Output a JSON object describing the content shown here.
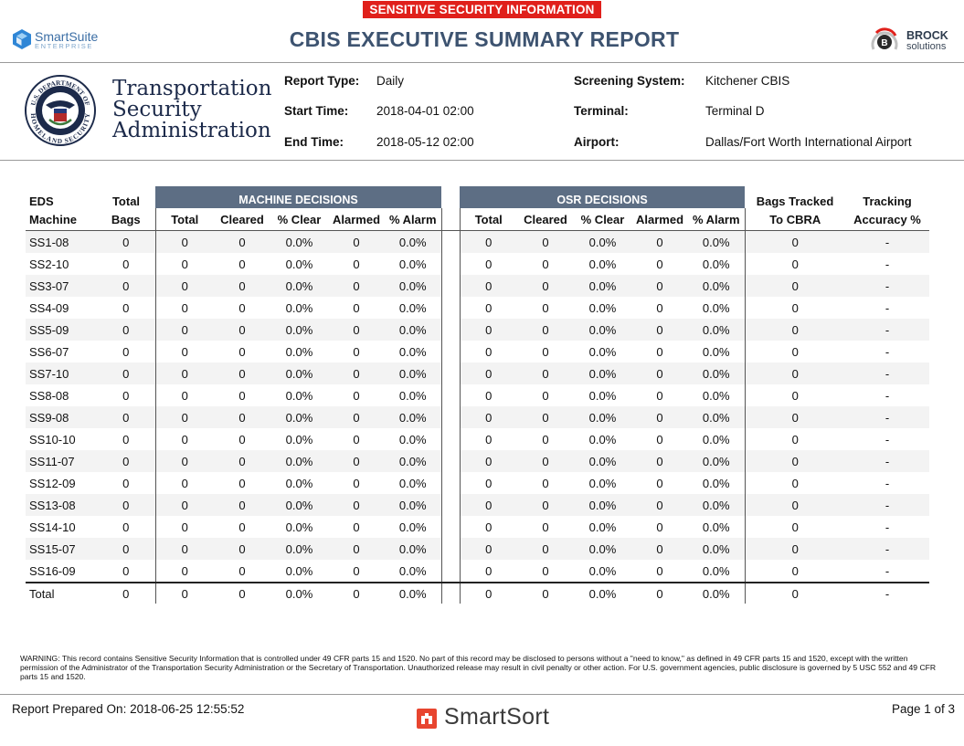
{
  "banner": {
    "ssi": "SENSITIVE SECURITY INFORMATION"
  },
  "header": {
    "title": "CBIS EXECUTIVE SUMMARY REPORT",
    "smartsuite": {
      "name": "SmartSuite",
      "sub": "ENTERPRISE"
    },
    "brock": {
      "line1": "BROCK",
      "line2": "solutions"
    }
  },
  "agency": {
    "seal_text": [
      "U.S. DEPARTMENT OF",
      "HOMELAND SECURITY"
    ],
    "name_lines": [
      "Transportation",
      "Security",
      "Administration"
    ]
  },
  "info": {
    "report_type_label": "Report Type:",
    "report_type": "Daily",
    "start_label": "Start Time:",
    "start": "2018-04-01 02:00",
    "end_label": "End Time:",
    "end": "2018-05-12 02:00",
    "system_label": "Screening System:",
    "system": "Kitchener CBIS",
    "terminal_label": "Terminal:",
    "terminal": "Terminal D",
    "airport_label": "Airport:",
    "airport": "Dallas/Fort Worth International Airport"
  },
  "table": {
    "group_machine": "MACHINE DECISIONS",
    "group_osr": "OSR DECISIONS",
    "eds_line1": "EDS",
    "eds_line2": "Machine",
    "total_bags_line1": "Total",
    "total_bags_line2": "Bags",
    "tracked_line1": "Bags Tracked",
    "tracked_line2": "To CBRA",
    "accuracy_line1": "Tracking",
    "accuracy_line2": "Accuracy %",
    "sub_cols": [
      "Total",
      "Cleared",
      "% Clear",
      "Alarmed",
      "% Alarm"
    ],
    "rows": [
      [
        "SS1-08",
        "0",
        "0",
        "0",
        "0.0%",
        "0",
        "0.0%",
        "0",
        "0",
        "0.0%",
        "0",
        "0.0%",
        "0",
        "-"
      ],
      [
        "SS2-10",
        "0",
        "0",
        "0",
        "0.0%",
        "0",
        "0.0%",
        "0",
        "0",
        "0.0%",
        "0",
        "0.0%",
        "0",
        "-"
      ],
      [
        "SS3-07",
        "0",
        "0",
        "0",
        "0.0%",
        "0",
        "0.0%",
        "0",
        "0",
        "0.0%",
        "0",
        "0.0%",
        "0",
        "-"
      ],
      [
        "SS4-09",
        "0",
        "0",
        "0",
        "0.0%",
        "0",
        "0.0%",
        "0",
        "0",
        "0.0%",
        "0",
        "0.0%",
        "0",
        "-"
      ],
      [
        "SS5-09",
        "0",
        "0",
        "0",
        "0.0%",
        "0",
        "0.0%",
        "0",
        "0",
        "0.0%",
        "0",
        "0.0%",
        "0",
        "-"
      ],
      [
        "SS6-07",
        "0",
        "0",
        "0",
        "0.0%",
        "0",
        "0.0%",
        "0",
        "0",
        "0.0%",
        "0",
        "0.0%",
        "0",
        "-"
      ],
      [
        "SS7-10",
        "0",
        "0",
        "0",
        "0.0%",
        "0",
        "0.0%",
        "0",
        "0",
        "0.0%",
        "0",
        "0.0%",
        "0",
        "-"
      ],
      [
        "SS8-08",
        "0",
        "0",
        "0",
        "0.0%",
        "0",
        "0.0%",
        "0",
        "0",
        "0.0%",
        "0",
        "0.0%",
        "0",
        "-"
      ],
      [
        "SS9-08",
        "0",
        "0",
        "0",
        "0.0%",
        "0",
        "0.0%",
        "0",
        "0",
        "0.0%",
        "0",
        "0.0%",
        "0",
        "-"
      ],
      [
        "SS10-10",
        "0",
        "0",
        "0",
        "0.0%",
        "0",
        "0.0%",
        "0",
        "0",
        "0.0%",
        "0",
        "0.0%",
        "0",
        "-"
      ],
      [
        "SS11-07",
        "0",
        "0",
        "0",
        "0.0%",
        "0",
        "0.0%",
        "0",
        "0",
        "0.0%",
        "0",
        "0.0%",
        "0",
        "-"
      ],
      [
        "SS12-09",
        "0",
        "0",
        "0",
        "0.0%",
        "0",
        "0.0%",
        "0",
        "0",
        "0.0%",
        "0",
        "0.0%",
        "0",
        "-"
      ],
      [
        "SS13-08",
        "0",
        "0",
        "0",
        "0.0%",
        "0",
        "0.0%",
        "0",
        "0",
        "0.0%",
        "0",
        "0.0%",
        "0",
        "-"
      ],
      [
        "SS14-10",
        "0",
        "0",
        "0",
        "0.0%",
        "0",
        "0.0%",
        "0",
        "0",
        "0.0%",
        "0",
        "0.0%",
        "0",
        "-"
      ],
      [
        "SS15-07",
        "0",
        "0",
        "0",
        "0.0%",
        "0",
        "0.0%",
        "0",
        "0",
        "0.0%",
        "0",
        "0.0%",
        "0",
        "-"
      ],
      [
        "SS16-09",
        "0",
        "0",
        "0",
        "0.0%",
        "0",
        "0.0%",
        "0",
        "0",
        "0.0%",
        "0",
        "0.0%",
        "0",
        "-"
      ]
    ],
    "total_row": [
      "Total",
      "0",
      "0",
      "0",
      "0.0%",
      "0",
      "0.0%",
      "0",
      "0",
      "0.0%",
      "0",
      "0.0%",
      "0",
      "-"
    ]
  },
  "footer": {
    "warning": "WARNING: This record contains Sensitive Security Information that is controlled under 49 CFR parts 15 and 1520. No part of this record may be disclosed to persons without a \"need to know,\" as defined in 49 CFR parts 15 and 1520, except with the written permission of the Administrator of the Transportation Security Administration or the Secretary of Transportation. Unauthorized release may result in civil penalty or other action. For U.S. government agencies, public disclosure is governed by 5 USC 552 and 49 CFR parts 15 and 1520.",
    "prepared": "Report Prepared On: 2018-06-25 12:55:52",
    "page": "Page 1 of 3",
    "smartsort": "SmartSort"
  },
  "colors": {
    "banner_red": "#e0201b",
    "title_blue": "#3d5370",
    "group_header": "#5d6e84",
    "stripe": "#f3f3f3"
  }
}
